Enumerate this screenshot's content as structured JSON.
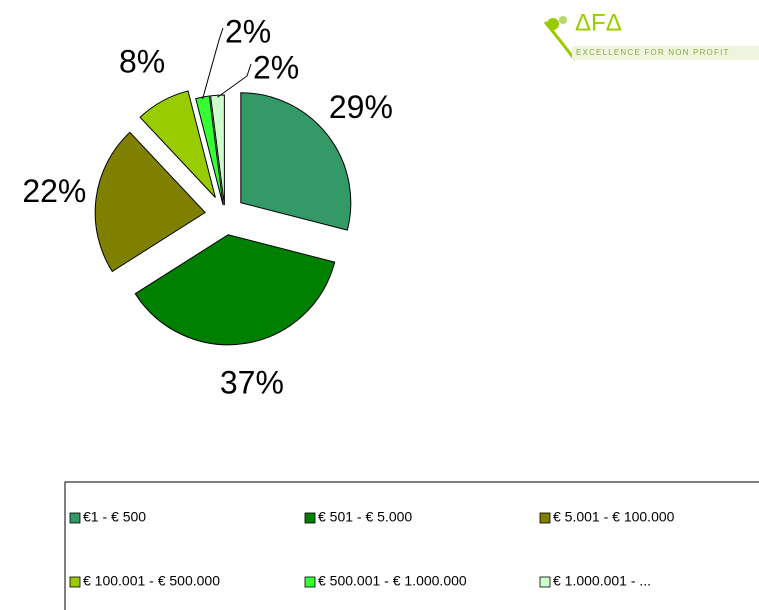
{
  "logo": {
    "name": "ΔFΔ",
    "tagline": "EXCELLENCE FOR NON PROFIT"
  },
  "chart_data": {
    "type": "pie",
    "categories": [
      "€1 - € 500",
      "€ 501 - € 5.000",
      "€ 5.001 - € 100.000",
      "€ 100.001 - € 500.000",
      "€ 500.001 - € 1.000.000",
      "€ 1.000.001 - ..."
    ],
    "values": [
      29,
      37,
      22,
      8,
      2,
      2
    ],
    "value_labels": [
      "29%",
      "37%",
      "22%",
      "8%",
      "2%",
      "2%"
    ],
    "colors": [
      "#339966",
      "#008000",
      "#808000",
      "#99cc00",
      "#33ff33",
      "#ccffcc"
    ],
    "legend": "bottom"
  }
}
